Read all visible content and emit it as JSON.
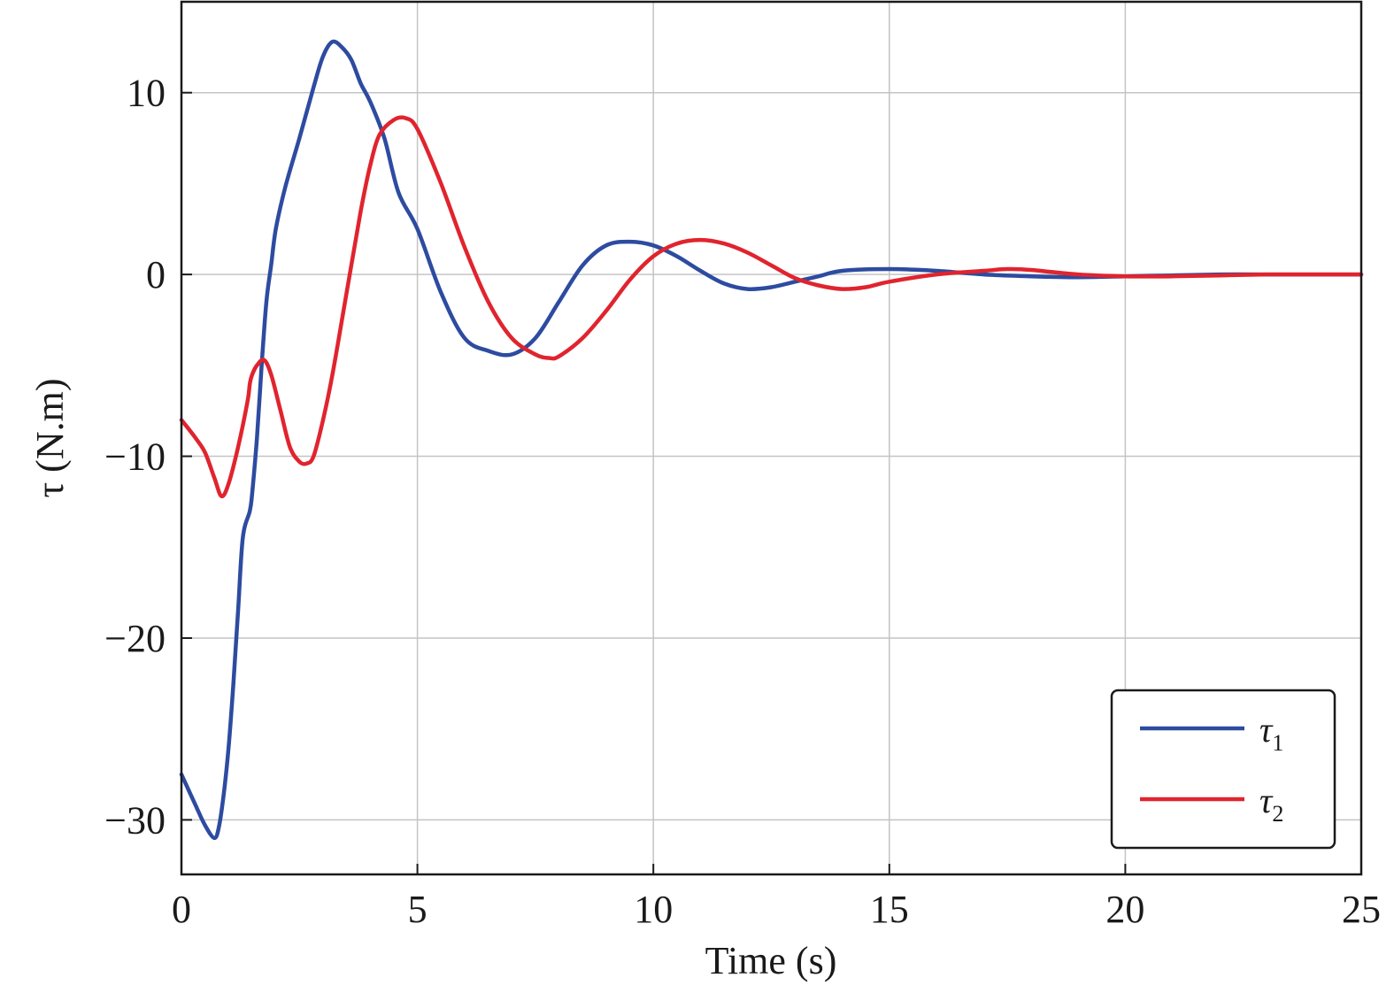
{
  "chart_data": {
    "type": "line",
    "title": "",
    "xlabel": "Time (s)",
    "ylabel": "τ (N.m)",
    "xlim": [
      0,
      25
    ],
    "ylim": [
      -33,
      15
    ],
    "xticks": [
      0,
      5,
      10,
      15,
      20,
      25
    ],
    "xtick_labels": [
      "0",
      "5",
      "10",
      "15",
      "20",
      "25"
    ],
    "yticks": [
      -30,
      -20,
      -10,
      0,
      10
    ],
    "ytick_labels": [
      "−30",
      "−20",
      "−10",
      "0",
      "10"
    ],
    "grid": true,
    "legend_position": "bottom-right",
    "series": [
      {
        "name": "τ1",
        "legend_base": "τ",
        "legend_sub": "1",
        "color": "#2d4ba0",
        "x": [
          0,
          0.3,
          0.5,
          0.7,
          0.8,
          0.9,
          1.0,
          1.1,
          1.2,
          1.3,
          1.45,
          1.5,
          1.6,
          1.7,
          1.8,
          1.9,
          2.0,
          2.2,
          2.5,
          2.8,
          3.0,
          3.2,
          3.4,
          3.6,
          3.8,
          4.0,
          4.3,
          4.6,
          5.0,
          5.5,
          6.0,
          6.5,
          7.0,
          7.5,
          8.0,
          8.5,
          9.0,
          9.5,
          10.0,
          10.5,
          11.0,
          11.5,
          12.0,
          12.5,
          13.0,
          13.5,
          14.0,
          15.0,
          16.0,
          17.0,
          18.0,
          19.0,
          20.0,
          21.0,
          22.0,
          23.0,
          24.0,
          25.0
        ],
        "values": [
          -27.5,
          -29.2,
          -30.3,
          -31.0,
          -30.3,
          -28.5,
          -26.0,
          -22.5,
          -18.5,
          -14.5,
          -13.0,
          -12.0,
          -9.0,
          -5.0,
          -1.5,
          0.5,
          2.5,
          4.8,
          7.5,
          10.3,
          12.0,
          12.8,
          12.5,
          11.8,
          10.5,
          9.5,
          7.5,
          4.5,
          2.5,
          -1.0,
          -3.5,
          -4.2,
          -4.4,
          -3.5,
          -1.5,
          0.5,
          1.6,
          1.8,
          1.6,
          1.0,
          0.2,
          -0.5,
          -0.8,
          -0.7,
          -0.4,
          -0.1,
          0.2,
          0.3,
          0.2,
          0.0,
          -0.1,
          -0.15,
          -0.1,
          -0.05,
          0.0,
          0.0,
          0.0,
          0.0
        ]
      },
      {
        "name": "τ2",
        "legend_base": "τ",
        "legend_sub": "2",
        "color": "#e0242e",
        "x": [
          0,
          0.3,
          0.5,
          0.7,
          0.85,
          1.0,
          1.2,
          1.4,
          1.45,
          1.5,
          1.6,
          1.75,
          1.9,
          2.1,
          2.3,
          2.5,
          2.65,
          2.8,
          3.0,
          3.2,
          3.5,
          3.8,
          4.0,
          4.2,
          4.5,
          4.75,
          5.0,
          5.5,
          6.0,
          6.5,
          7.0,
          7.5,
          7.8,
          8.0,
          8.5,
          9.0,
          9.5,
          10.0,
          10.5,
          11.0,
          11.5,
          12.0,
          12.5,
          13.0,
          13.5,
          14.0,
          14.5,
          15.0,
          16.0,
          17.0,
          17.5,
          18.0,
          19.0,
          20.0,
          21.0,
          22.0,
          23.0,
          24.0,
          25.0
        ],
        "values": [
          -8.0,
          -9.0,
          -9.8,
          -11.2,
          -12.2,
          -11.5,
          -9.5,
          -7.0,
          -6.0,
          -5.5,
          -5.0,
          -4.7,
          -5.5,
          -7.5,
          -9.5,
          -10.3,
          -10.4,
          -10.0,
          -8.0,
          -5.5,
          -1.0,
          3.5,
          6.0,
          7.7,
          8.5,
          8.6,
          8.0,
          5.0,
          1.5,
          -1.5,
          -3.5,
          -4.4,
          -4.6,
          -4.5,
          -3.5,
          -2.0,
          -0.3,
          1.0,
          1.7,
          1.9,
          1.7,
          1.2,
          0.5,
          -0.2,
          -0.6,
          -0.8,
          -0.7,
          -0.4,
          0.0,
          0.2,
          0.3,
          0.25,
          0.0,
          -0.1,
          -0.1,
          -0.05,
          0.0,
          0.0,
          0.0
        ]
      }
    ]
  }
}
